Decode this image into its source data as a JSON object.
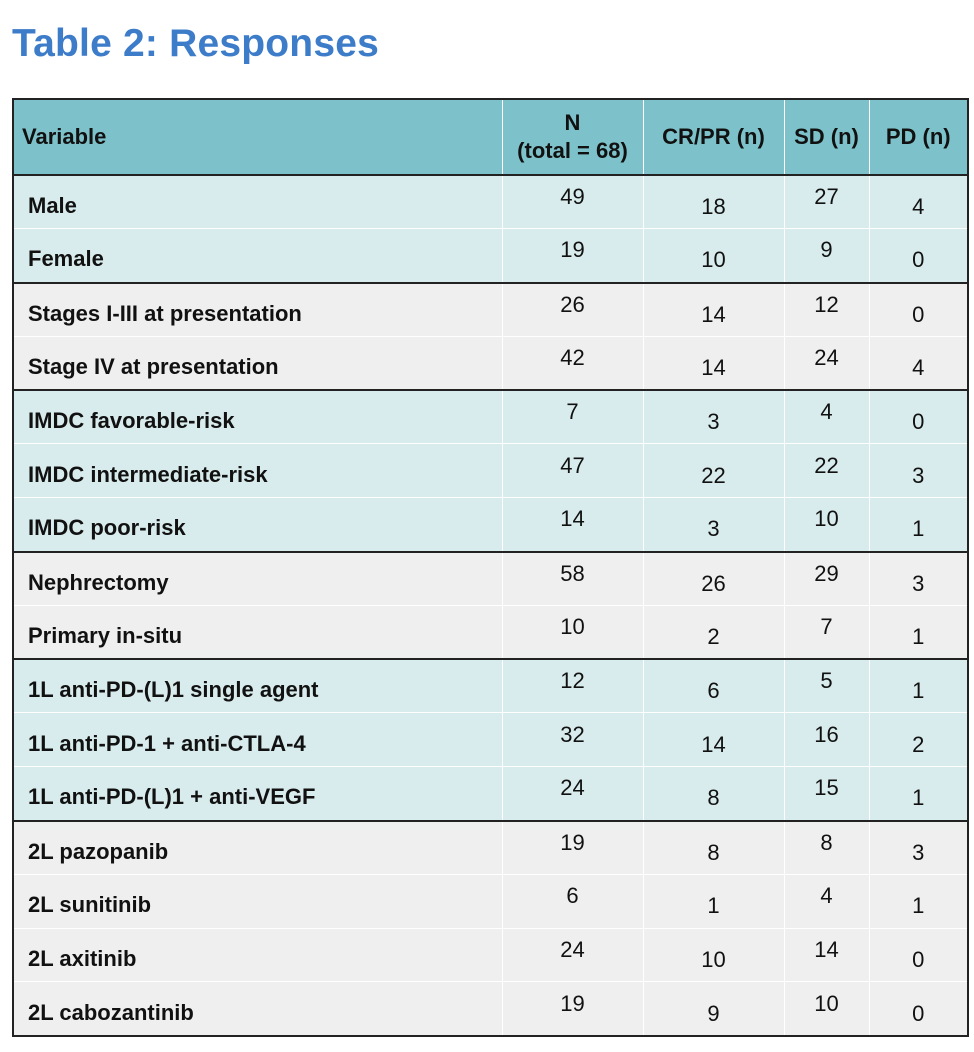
{
  "title": "Table 2: Responses",
  "table": {
    "headers": {
      "variable": "Variable",
      "n_line1": "N",
      "n_line2": "(total = 68)",
      "crpr": "CR/PR (n)",
      "sd": "SD (n)",
      "pd": "PD (n)"
    },
    "rows": [
      {
        "variable": "Male",
        "n": "49",
        "crpr": "18",
        "sd": "27",
        "pd": "4",
        "group": 0
      },
      {
        "variable": "Female",
        "n": "19",
        "crpr": "10",
        "sd": "9",
        "pd": "0",
        "group": 0
      },
      {
        "variable": "Stages I-III at presentation",
        "n": "26",
        "crpr": "14",
        "sd": "12",
        "pd": "0",
        "group": 1
      },
      {
        "variable": "Stage IV at presentation",
        "n": "42",
        "crpr": "14",
        "sd": "24",
        "pd": "4",
        "group": 1
      },
      {
        "variable": "IMDC favorable-risk",
        "n": "7",
        "crpr": "3",
        "sd": "4",
        "pd": "0",
        "group": 2
      },
      {
        "variable": "IMDC intermediate-risk",
        "n": "47",
        "crpr": "22",
        "sd": "22",
        "pd": "3",
        "group": 2
      },
      {
        "variable": "IMDC poor-risk",
        "n": "14",
        "crpr": "3",
        "sd": "10",
        "pd": "1",
        "group": 2
      },
      {
        "variable": "Nephrectomy",
        "n": "58",
        "crpr": "26",
        "sd": "29",
        "pd": "3",
        "group": 3
      },
      {
        "variable": "Primary in-situ",
        "n": "10",
        "crpr": "2",
        "sd": "7",
        "pd": "1",
        "group": 3
      },
      {
        "variable": "1L anti-PD-(L)1 single agent",
        "n": "12",
        "crpr": "6",
        "sd": "5",
        "pd": "1",
        "group": 4
      },
      {
        "variable": "1L anti-PD-1 + anti-CTLA-4",
        "n": "32",
        "crpr": "14",
        "sd": "16",
        "pd": "2",
        "group": 4
      },
      {
        "variable": "1L anti-PD-(L)1 + anti-VEGF",
        "n": "24",
        "crpr": "8",
        "sd": "15",
        "pd": "1",
        "group": 4
      },
      {
        "variable": "2L pazopanib",
        "n": "19",
        "crpr": "8",
        "sd": "8",
        "pd": "3",
        "group": 5
      },
      {
        "variable": "2L sunitinib",
        "n": "6",
        "crpr": "1",
        "sd": "4",
        "pd": "1",
        "group": 5
      },
      {
        "variable": "2L axitinib",
        "n": "24",
        "crpr": "10",
        "sd": "14",
        "pd": "0",
        "group": 5
      },
      {
        "variable": "2L cabozantinib",
        "n": "19",
        "crpr": "9",
        "sd": "10",
        "pd": "0",
        "group": 5
      }
    ]
  },
  "colors": {
    "title": "#3d7cc9",
    "header_bg": "#7dc2ca",
    "band_teal": "#d9eced",
    "band_gray": "#efefef"
  }
}
